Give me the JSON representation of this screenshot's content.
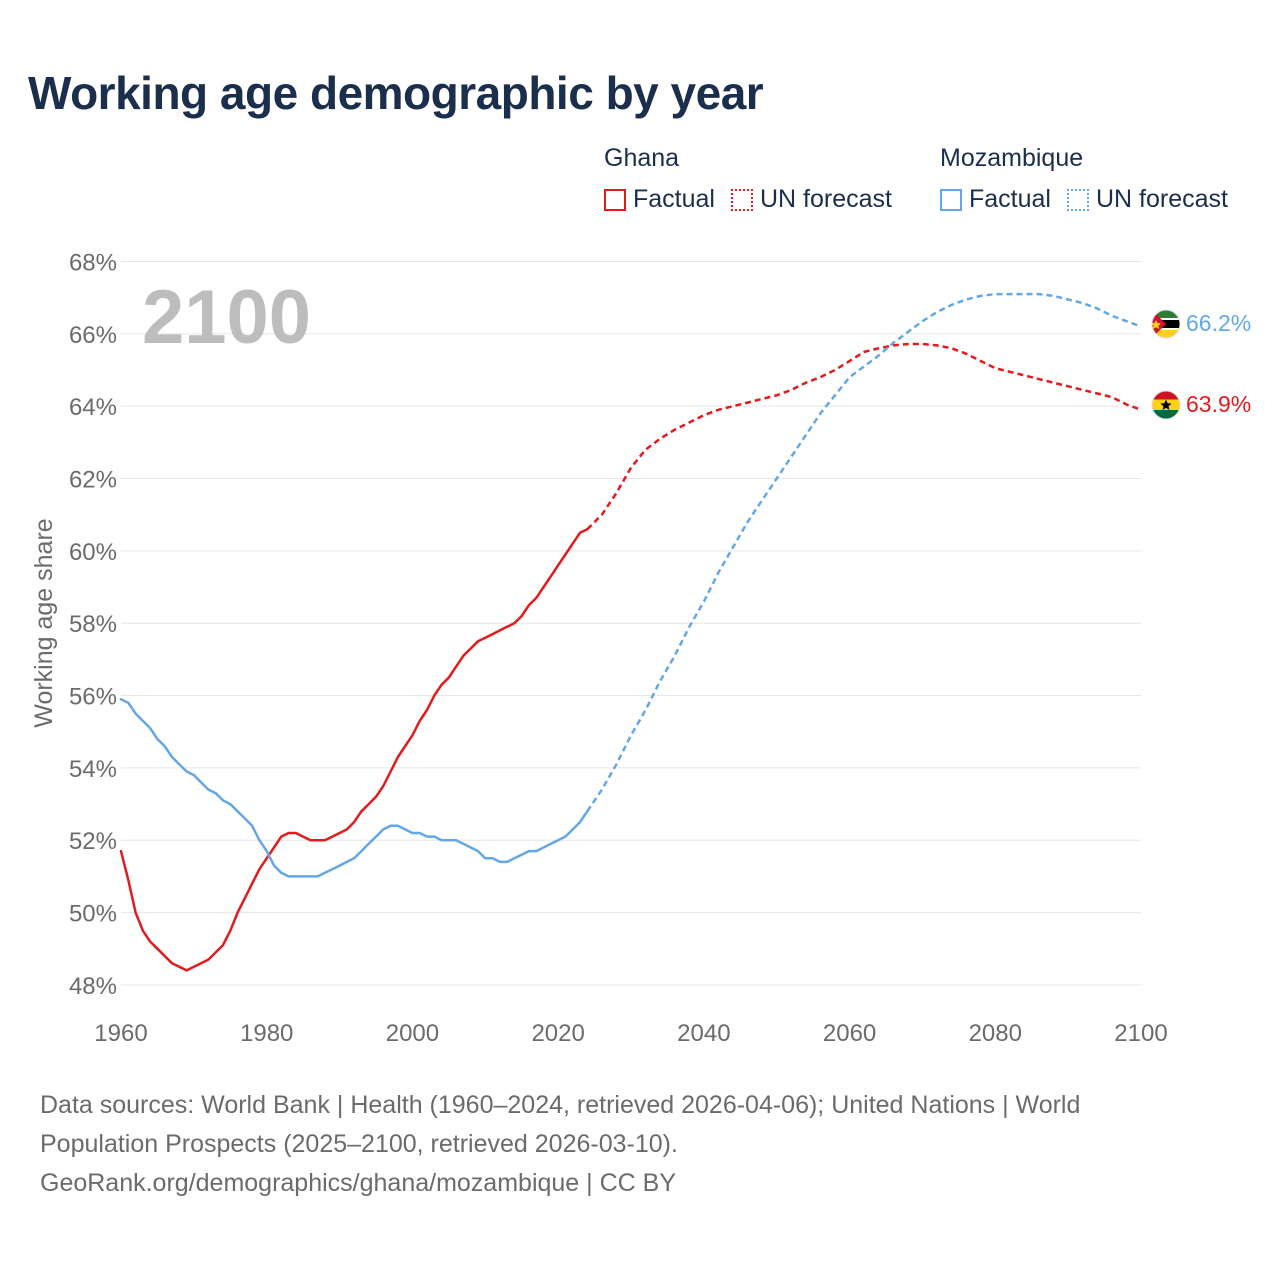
{
  "title": "Working age demographic by year",
  "legend": {
    "groups": [
      {
        "name": "Ghana",
        "color": "#e41a1c",
        "factual_label": "Factual",
        "forecast_label": "UN forecast"
      },
      {
        "name": "Mozambique",
        "color": "#64a7e6",
        "factual_label": "Factual",
        "forecast_label": "UN forecast"
      }
    ]
  },
  "year_watermark": "2100",
  "end_labels": {
    "ghana": "63.9%",
    "mozambique": "66.2%"
  },
  "flags": {
    "ghana": "ghana-flag-icon",
    "mozambique": "mozambique-flag-icon"
  },
  "chart_data": {
    "type": "line",
    "title": "Working age demographic by year",
    "ylabel": "Working age share",
    "xlabel": "",
    "xlim": [
      1960,
      2100
    ],
    "ylim": [
      47.5,
      68
    ],
    "x_ticks": [
      1960,
      1980,
      2000,
      2020,
      2040,
      2060,
      2080,
      2100
    ],
    "x_tick_labels": [
      "1960",
      "1980",
      "2000",
      "2020",
      "2040",
      "2060",
      "2080",
      "2100"
    ],
    "y_ticks": [
      48,
      50,
      52,
      54,
      56,
      58,
      60,
      62,
      64,
      66,
      68
    ],
    "y_tick_labels": [
      "48%",
      "50%",
      "52%",
      "54%",
      "56%",
      "58%",
      "60%",
      "62%",
      "64%",
      "66%",
      "68%"
    ],
    "grid": true,
    "series": [
      {
        "name": "Ghana",
        "segment": "Factual",
        "color": "#e41a1c",
        "style": "solid",
        "x": [
          1960,
          1961,
          1962,
          1963,
          1964,
          1965,
          1966,
          1967,
          1968,
          1969,
          1970,
          1971,
          1972,
          1973,
          1974,
          1975,
          1976,
          1977,
          1978,
          1979,
          1980,
          1981,
          1982,
          1983,
          1984,
          1985,
          1986,
          1987,
          1988,
          1989,
          1990,
          1991,
          1992,
          1993,
          1994,
          1995,
          1996,
          1997,
          1998,
          1999,
          2000,
          2001,
          2002,
          2003,
          2004,
          2005,
          2006,
          2007,
          2008,
          2009,
          2010,
          2011,
          2012,
          2013,
          2014,
          2015,
          2016,
          2017,
          2018,
          2019,
          2020,
          2021,
          2022,
          2023,
          2024
        ],
        "y": [
          51.7,
          50.9,
          50.0,
          49.5,
          49.2,
          49.0,
          48.8,
          48.6,
          48.5,
          48.4,
          48.5,
          48.6,
          48.7,
          48.9,
          49.1,
          49.5,
          50.0,
          50.4,
          50.8,
          51.2,
          51.5,
          51.8,
          52.1,
          52.2,
          52.2,
          52.1,
          52.0,
          52.0,
          52.0,
          52.1,
          52.2,
          52.3,
          52.5,
          52.8,
          53.0,
          53.2,
          53.5,
          53.9,
          54.3,
          54.6,
          54.9,
          55.3,
          55.6,
          56.0,
          56.3,
          56.5,
          56.8,
          57.1,
          57.3,
          57.5,
          57.6,
          57.7,
          57.8,
          57.9,
          58.0,
          58.2,
          58.5,
          58.7,
          59.0,
          59.3,
          59.6,
          59.9,
          60.2,
          60.5,
          60.6
        ]
      },
      {
        "name": "Ghana",
        "segment": "UN forecast",
        "color": "#e41a1c",
        "style": "dashed",
        "x": [
          2024,
          2026,
          2028,
          2030,
          2032,
          2034,
          2036,
          2038,
          2040,
          2042,
          2044,
          2046,
          2048,
          2050,
          2052,
          2054,
          2056,
          2058,
          2060,
          2062,
          2064,
          2066,
          2068,
          2070,
          2072,
          2074,
          2076,
          2078,
          2080,
          2082,
          2084,
          2086,
          2088,
          2090,
          2092,
          2094,
          2096,
          2098,
          2100
        ],
        "y": [
          60.6,
          61.0,
          61.6,
          62.3,
          62.8,
          63.1,
          63.35,
          63.55,
          63.75,
          63.9,
          64.0,
          64.1,
          64.2,
          64.3,
          64.45,
          64.65,
          64.8,
          65.0,
          65.25,
          65.5,
          65.6,
          65.68,
          65.72,
          65.72,
          65.68,
          65.6,
          65.45,
          65.25,
          65.05,
          64.95,
          64.85,
          64.75,
          64.65,
          64.55,
          64.45,
          64.35,
          64.25,
          64.05,
          63.9
        ]
      },
      {
        "name": "Mozambique",
        "segment": "Factual",
        "color": "#64a7e6",
        "style": "solid",
        "x": [
          1960,
          1961,
          1962,
          1963,
          1964,
          1965,
          1966,
          1967,
          1968,
          1969,
          1970,
          1971,
          1972,
          1973,
          1974,
          1975,
          1976,
          1977,
          1978,
          1979,
          1980,
          1981,
          1982,
          1983,
          1984,
          1985,
          1986,
          1987,
          1988,
          1989,
          1990,
          1991,
          1992,
          1993,
          1994,
          1995,
          1996,
          1997,
          1998,
          1999,
          2000,
          2001,
          2002,
          2003,
          2004,
          2005,
          2006,
          2007,
          2008,
          2009,
          2010,
          2011,
          2012,
          2013,
          2014,
          2015,
          2016,
          2017,
          2018,
          2019,
          2020,
          2021,
          2022,
          2023,
          2024
        ],
        "y": [
          55.9,
          55.8,
          55.5,
          55.3,
          55.1,
          54.8,
          54.6,
          54.3,
          54.1,
          53.9,
          53.8,
          53.6,
          53.4,
          53.3,
          53.1,
          53.0,
          52.8,
          52.6,
          52.4,
          52.0,
          51.7,
          51.3,
          51.1,
          51.0,
          51.0,
          51.0,
          51.0,
          51.0,
          51.1,
          51.2,
          51.3,
          51.4,
          51.5,
          51.7,
          51.9,
          52.1,
          52.3,
          52.4,
          52.4,
          52.3,
          52.2,
          52.2,
          52.1,
          52.1,
          52.0,
          52.0,
          52.0,
          51.9,
          51.8,
          51.7,
          51.5,
          51.5,
          51.4,
          51.4,
          51.5,
          51.6,
          51.7,
          51.7,
          51.8,
          51.9,
          52.0,
          52.1,
          52.3,
          52.5,
          52.8
        ]
      },
      {
        "name": "Mozambique",
        "segment": "UN forecast",
        "color": "#64a7e6",
        "style": "dashed",
        "x": [
          2024,
          2026,
          2028,
          2030,
          2032,
          2034,
          2036,
          2038,
          2040,
          2042,
          2044,
          2046,
          2048,
          2050,
          2052,
          2054,
          2056,
          2058,
          2060,
          2062,
          2064,
          2066,
          2068,
          2070,
          2072,
          2074,
          2076,
          2078,
          2080,
          2082,
          2084,
          2086,
          2088,
          2090,
          2092,
          2094,
          2096,
          2098,
          2100
        ],
        "y": [
          52.8,
          53.4,
          54.1,
          54.9,
          55.6,
          56.4,
          57.1,
          57.9,
          58.6,
          59.4,
          60.1,
          60.8,
          61.4,
          62.0,
          62.6,
          63.2,
          63.8,
          64.3,
          64.8,
          65.1,
          65.4,
          65.75,
          66.05,
          66.35,
          66.6,
          66.8,
          66.95,
          67.05,
          67.1,
          67.1,
          67.1,
          67.1,
          67.05,
          66.95,
          66.85,
          66.7,
          66.5,
          66.35,
          66.2
        ]
      }
    ]
  },
  "footer": {
    "line1": "Data sources: World Bank | Health (1960–2024, retrieved 2026-04-06); United Nations | World",
    "line2": "Population Prospects (2025–2100, retrieved 2026-03-10).",
    "line3": "GeoRank.org/demographics/ghana/mozambique | CC BY"
  }
}
